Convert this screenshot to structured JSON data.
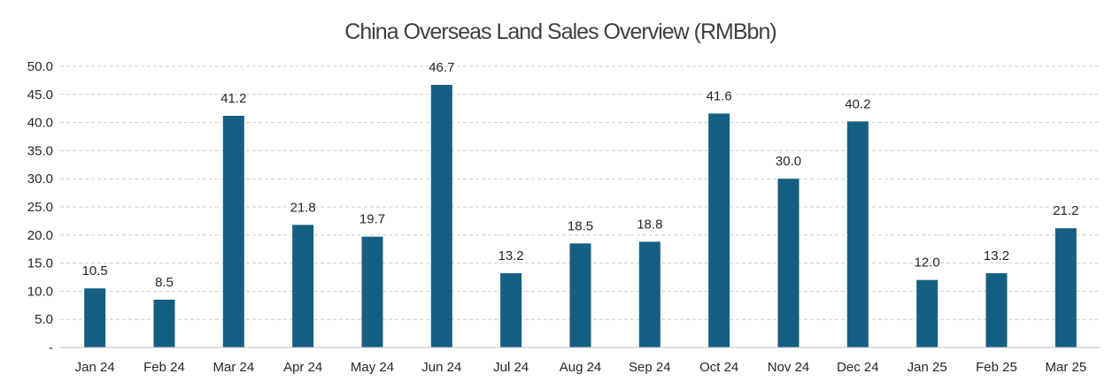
{
  "chart_data": {
    "type": "bar",
    "title": "China Overseas Land Sales Overview (RMBbn)",
    "xlabel": "",
    "ylabel": "",
    "categories": [
      "Jan 24",
      "Feb 24",
      "Mar 24",
      "Apr 24",
      "May 24",
      "Jun 24",
      "Jul 24",
      "Aug 24",
      "Sep 24",
      "Oct 24",
      "Nov 24",
      "Dec 24",
      "Jan 25",
      "Feb 25",
      "Mar 25"
    ],
    "values": [
      10.5,
      8.5,
      41.2,
      21.8,
      19.7,
      46.7,
      13.2,
      18.5,
      18.8,
      41.6,
      30.0,
      40.2,
      12.0,
      13.2,
      21.2
    ],
    "data_labels": [
      "10.5",
      "8.5",
      "41.2",
      "21.8",
      "19.7",
      "46.7",
      "13.2",
      "18.5",
      "18.8",
      "41.6",
      "30.0",
      "40.2",
      "12.0",
      "13.2",
      "21.2"
    ],
    "ylim": [
      0,
      50
    ],
    "y_ticks": [
      0,
      5,
      10,
      15,
      20,
      25,
      30,
      35,
      40,
      45,
      50
    ],
    "y_tick_labels": [
      "-",
      "5.0",
      "10.0",
      "15.0",
      "20.0",
      "25.0",
      "30.0",
      "35.0",
      "40.0",
      "45.0",
      "50.0"
    ],
    "grid": true,
    "legend": "none",
    "bar_color": "#156082"
  }
}
